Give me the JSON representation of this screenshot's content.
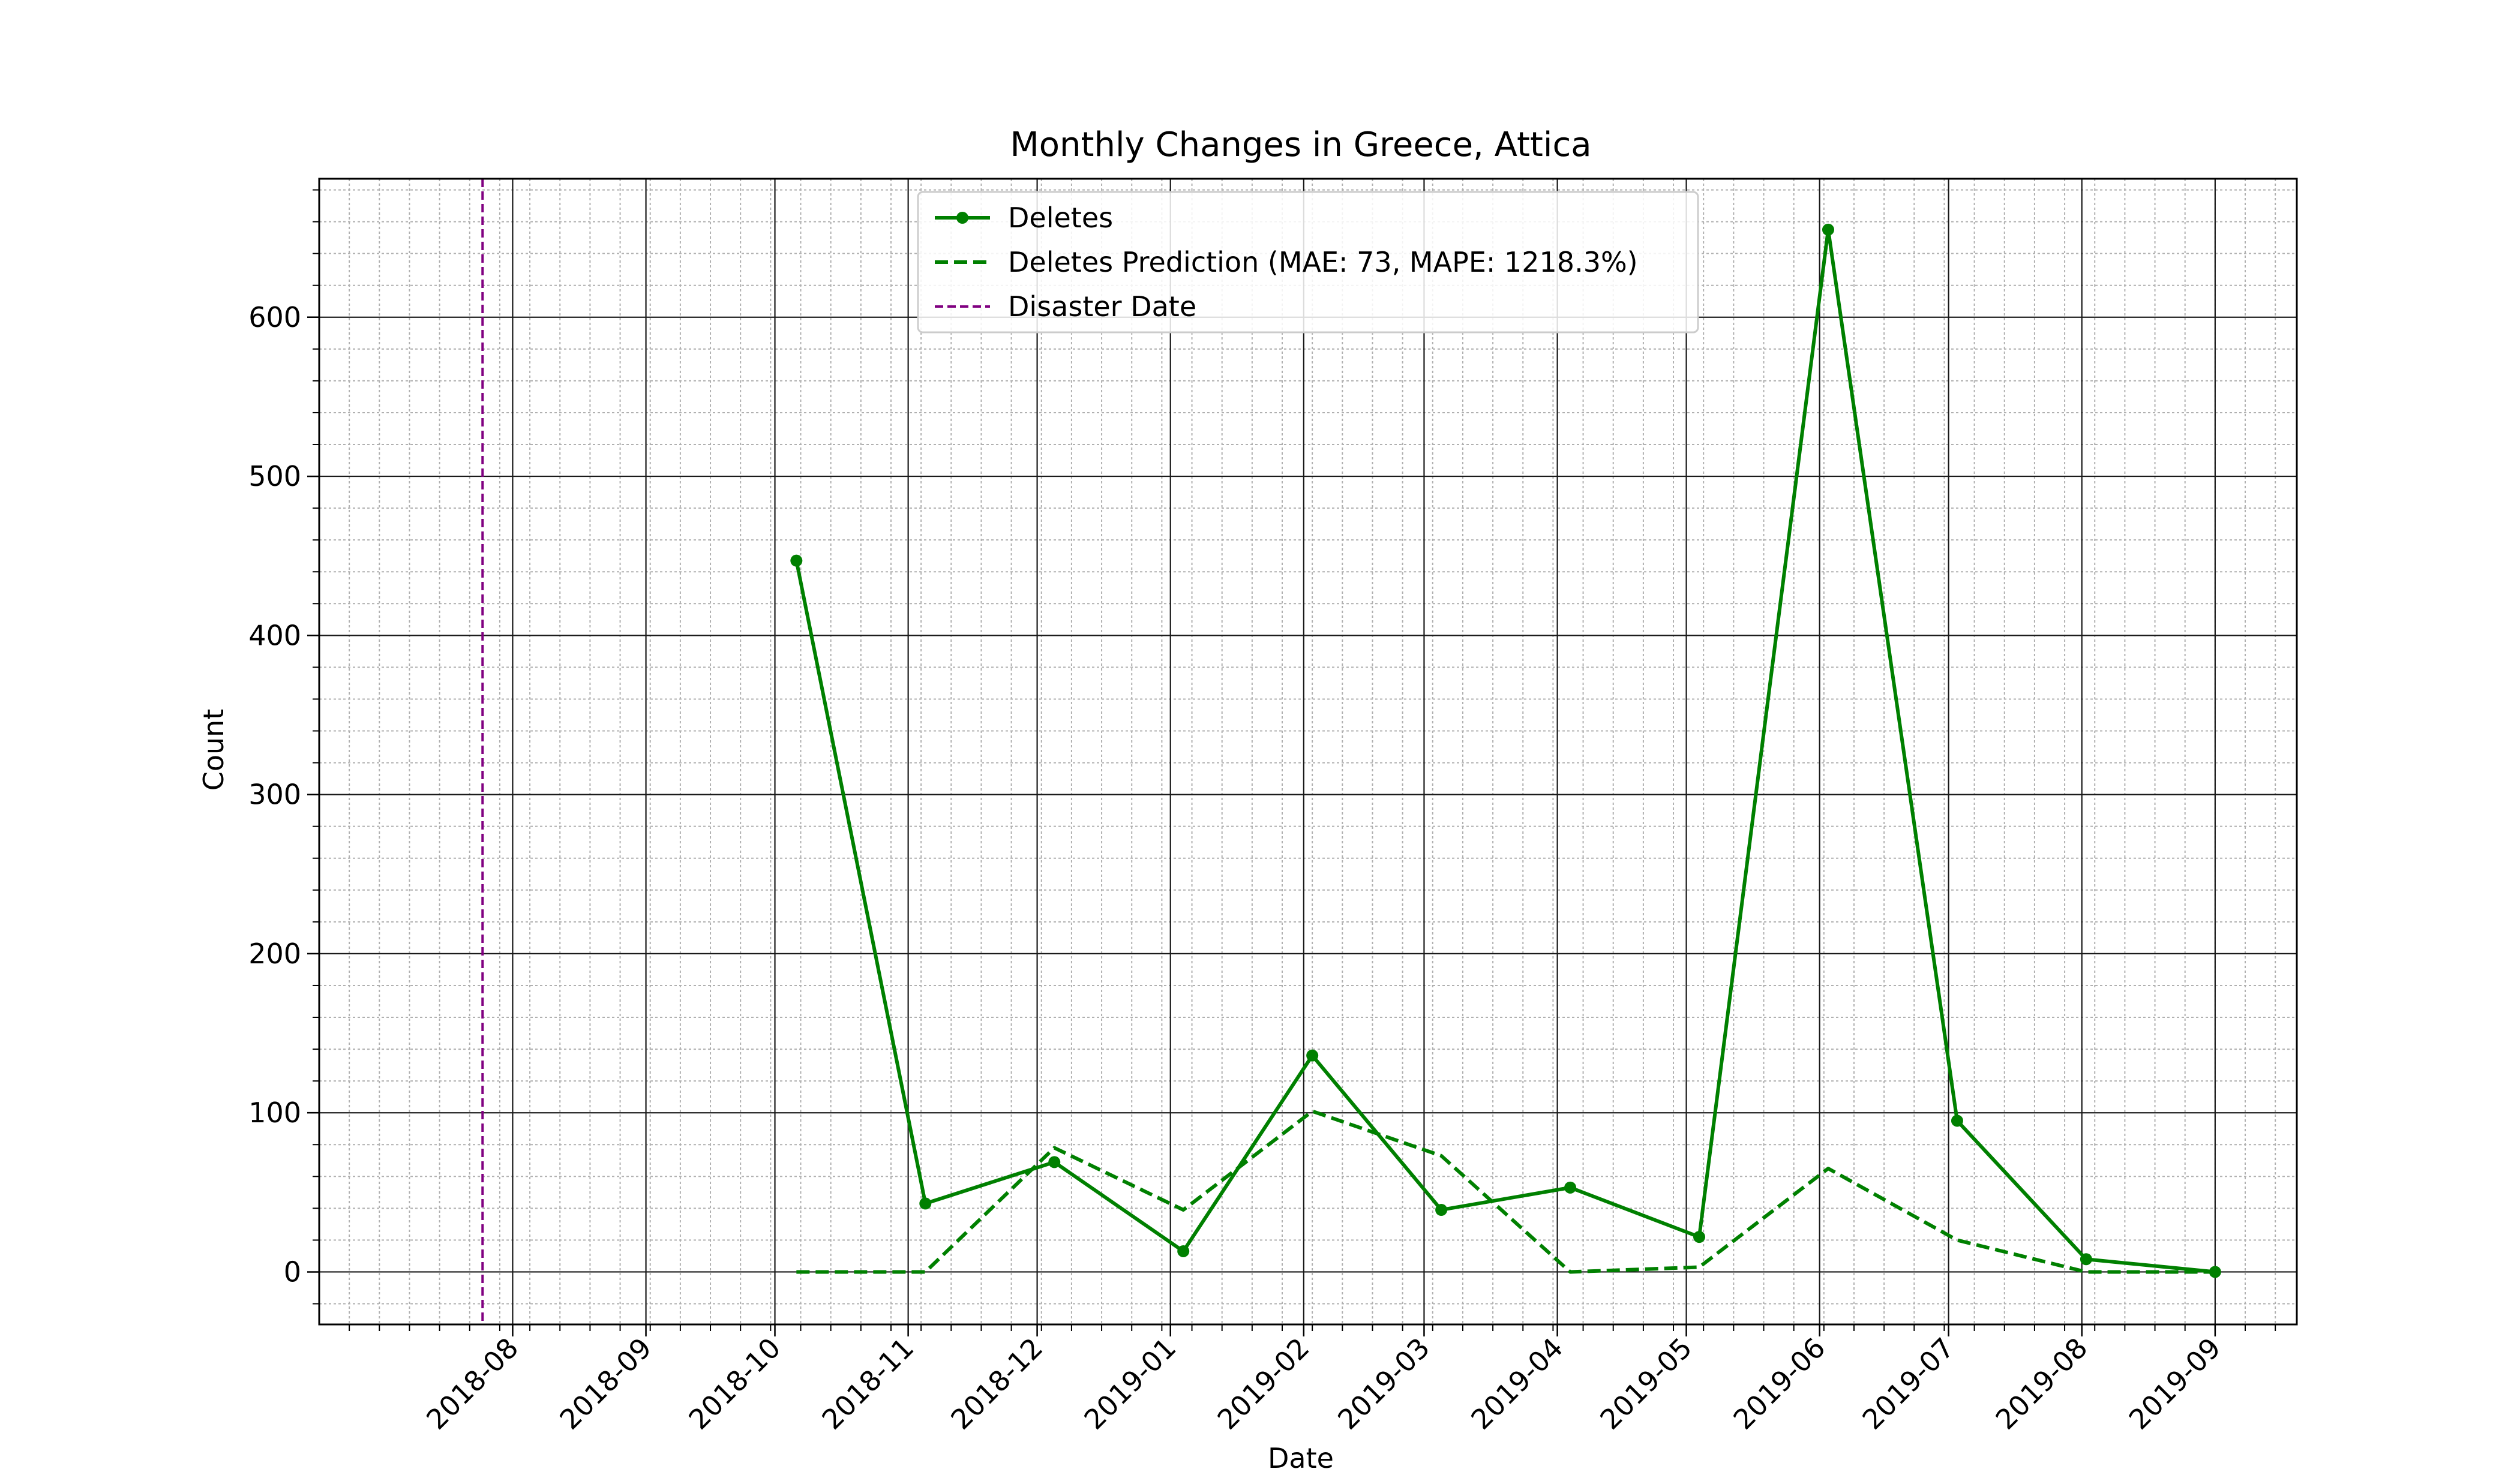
{
  "chart_data": {
    "type": "line",
    "title": "Monthly Changes in Greece, Attica",
    "xlabel": "Date",
    "ylabel": "Count",
    "x_ticks": [
      "2018-08",
      "2018-09",
      "2018-10",
      "2018-11",
      "2018-12",
      "2019-01",
      "2019-02",
      "2019-03",
      "2019-04",
      "2019-05",
      "2019-06",
      "2019-07",
      "2019-08",
      "2019-09"
    ],
    "y_ticks": [
      0,
      100,
      200,
      300,
      400,
      500,
      600
    ],
    "ylim": [
      -33,
      687
    ],
    "xlim": [
      "2018-06-17",
      "2019-09-20"
    ],
    "grid": "major and minor",
    "legend_position": "upper center",
    "series": [
      {
        "name": "Deletes",
        "style": "solid line with circle markers",
        "color": "#008000",
        "x": [
          "2018-10-06",
          "2018-11-05",
          "2018-12-05",
          "2019-01-04",
          "2019-02-03",
          "2019-03-05",
          "2019-04-04",
          "2019-05-04",
          "2019-06-03",
          "2019-07-03",
          "2019-08-02",
          "2019-09-01"
        ],
        "values": [
          447,
          43,
          69,
          13,
          136,
          39,
          53,
          22,
          655,
          95,
          8,
          0
        ]
      },
      {
        "name": "Deletes Prediction (MAE: 73, MAPE: 1218.3%)",
        "style": "dashed line",
        "color": "#008000",
        "x": [
          "2018-10-06",
          "2018-11-05",
          "2018-12-05",
          "2019-01-04",
          "2019-02-03",
          "2019-03-05",
          "2019-04-04",
          "2019-05-04",
          "2019-06-03",
          "2019-07-03",
          "2019-08-02",
          "2019-09-01"
        ],
        "values": [
          0,
          0,
          78,
          39,
          101,
          73,
          0,
          3,
          65,
          20,
          0,
          0
        ]
      }
    ],
    "vertical_lines": [
      {
        "name": "Disaster Date",
        "style": "dashed line",
        "color": "#800080",
        "x": "2018-07-25"
      }
    ]
  }
}
